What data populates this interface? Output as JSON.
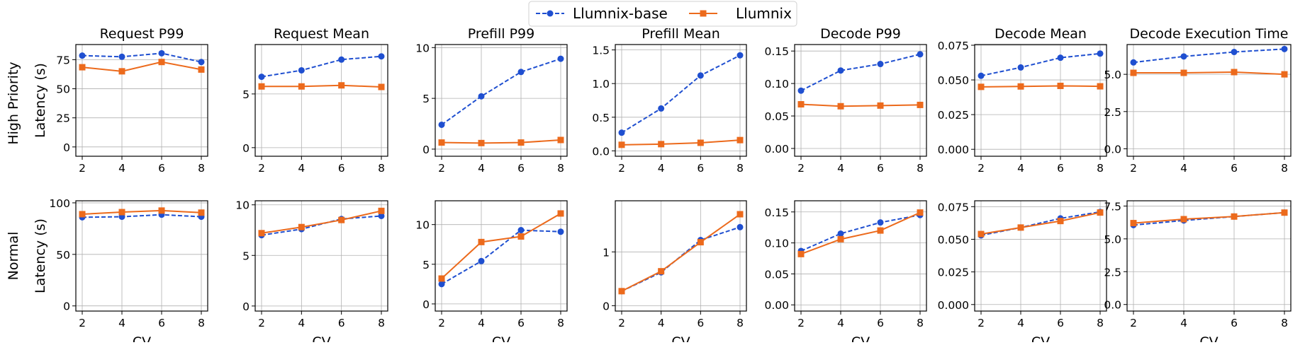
{
  "legend": {
    "position": "top-center",
    "entries": [
      {
        "label": "Llumnix-base",
        "color": "#1f4fd0",
        "marker": "circle",
        "linestyle": "dashed"
      },
      {
        "label": "Llumnix",
        "color": "#ec6a1c",
        "marker": "square",
        "linestyle": "solid"
      }
    ]
  },
  "rows": [
    {
      "label": "High Priority",
      "ylabel": "Latency (s)"
    },
    {
      "label": "Normal",
      "ylabel": "Latency (s)"
    }
  ],
  "xlabel": "CV",
  "chart_data": [
    {
      "type": "line",
      "title": "Request P99",
      "row": 0,
      "col": 0,
      "xlabel": "",
      "ylabel": "Latency (s)",
      "x": [
        2,
        4,
        6,
        8
      ],
      "ylim": [
        -8,
        88
      ],
      "yticks": [
        0,
        25,
        50,
        75
      ],
      "ytick_labels": [
        "0",
        "25",
        "50",
        "75"
      ],
      "grid": true,
      "series": [
        {
          "name": "Llumnix-base",
          "values": [
            78.5,
            77.5,
            80.5,
            73.0
          ]
        },
        {
          "name": "Llumnix",
          "values": [
            68.5,
            65.0,
            73.0,
            66.5
          ]
        }
      ]
    },
    {
      "type": "line",
      "title": "Request Mean",
      "row": 0,
      "col": 1,
      "xlabel": "",
      "ylabel": "",
      "x": [
        2,
        4,
        6,
        8
      ],
      "ylim": [
        -0.8,
        9.6
      ],
      "yticks": [
        0,
        5
      ],
      "ytick_labels": [
        "0",
        "5"
      ],
      "grid": true,
      "series": [
        {
          "name": "Llumnix-base",
          "values": [
            6.6,
            7.2,
            8.2,
            8.5
          ]
        },
        {
          "name": "Llumnix",
          "values": [
            5.7,
            5.7,
            5.8,
            5.65
          ]
        }
      ]
    },
    {
      "type": "line",
      "title": "Prefill P99",
      "row": 0,
      "col": 2,
      "xlabel": "",
      "ylabel": "",
      "x": [
        2,
        4,
        6,
        8
      ],
      "ylim": [
        -0.7,
        10.3
      ],
      "yticks": [
        0,
        5,
        10
      ],
      "ytick_labels": [
        "0",
        "5",
        "10"
      ],
      "grid": true,
      "series": [
        {
          "name": "Llumnix-base",
          "values": [
            2.4,
            5.2,
            7.6,
            8.9
          ]
        },
        {
          "name": "Llumnix",
          "values": [
            0.65,
            0.6,
            0.65,
            0.9
          ]
        }
      ]
    },
    {
      "type": "line",
      "title": "Prefill Mean",
      "row": 0,
      "col": 3,
      "xlabel": "",
      "ylabel": "",
      "x": [
        2,
        4,
        6,
        8
      ],
      "ylim": [
        -0.08,
        1.58
      ],
      "yticks": [
        0.0,
        0.5,
        1.0,
        1.5
      ],
      "ytick_labels": [
        "0.0",
        "0.5",
        "1.0",
        "1.5"
      ],
      "grid": true,
      "series": [
        {
          "name": "Llumnix-base",
          "values": [
            0.27,
            0.63,
            1.12,
            1.42
          ]
        },
        {
          "name": "Llumnix",
          "values": [
            0.09,
            0.1,
            0.12,
            0.16
          ]
        }
      ]
    },
    {
      "type": "line",
      "title": "Decode P99",
      "row": 0,
      "col": 4,
      "xlabel": "",
      "ylabel": "",
      "x": [
        2,
        4,
        6,
        8
      ],
      "ylim": [
        -0.012,
        0.16
      ],
      "yticks": [
        0.0,
        0.05,
        0.1,
        0.15
      ],
      "ytick_labels": [
        "0.00",
        "0.05",
        "0.10",
        "0.15"
      ],
      "grid": true,
      "series": [
        {
          "name": "Llumnix-base",
          "values": [
            0.089,
            0.12,
            0.13,
            0.145
          ]
        },
        {
          "name": "Llumnix",
          "values": [
            0.068,
            0.065,
            0.066,
            0.067
          ]
        }
      ]
    },
    {
      "type": "line",
      "title": "Decode Mean",
      "row": 0,
      "col": 5,
      "xlabel": "",
      "ylabel": "",
      "x": [
        2,
        4,
        6,
        8
      ],
      "ylim": [
        -0.005,
        0.0755
      ],
      "yticks": [
        0.0,
        0.025,
        0.05,
        0.075
      ],
      "ytick_labels": [
        "0.000",
        "0.025",
        "0.050",
        "0.075"
      ],
      "grid": true,
      "series": [
        {
          "name": "Llumnix-base",
          "values": [
            0.053,
            0.059,
            0.066,
            0.069
          ]
        },
        {
          "name": "Llumnix",
          "values": [
            0.045,
            0.0453,
            0.0457,
            0.0454
          ]
        }
      ]
    },
    {
      "type": "line",
      "title": "Decode Execution Time",
      "row": 0,
      "col": 6,
      "xlabel": "",
      "ylabel": "",
      "x": [
        2,
        4,
        6,
        8
      ],
      "ylim": [
        -0.5,
        7.0
      ],
      "yticks": [
        0.0,
        2.5,
        5.0
      ],
      "ytick_labels": [
        "0.0",
        "2.5",
        "5.0"
      ],
      "grid": true,
      "series": [
        {
          "name": "Llumnix-base",
          "values": [
            5.8,
            6.2,
            6.5,
            6.7
          ]
        },
        {
          "name": "Llumnix",
          "values": [
            5.1,
            5.1,
            5.15,
            5.0
          ]
        }
      ]
    },
    {
      "type": "line",
      "title": "",
      "row": 1,
      "col": 0,
      "xlabel": "CV",
      "ylabel": "Latency (s)",
      "x": [
        2,
        4,
        6,
        8
      ],
      "ylim": [
        -5,
        102
      ],
      "yticks": [
        0,
        50,
        100
      ],
      "ytick_labels": [
        "0",
        "50",
        "100"
      ],
      "grid": true,
      "series": [
        {
          "name": "Llumnix-base",
          "values": [
            86,
            86.5,
            88.5,
            86.5
          ]
        },
        {
          "name": "Llumnix",
          "values": [
            89,
            91,
            92.5,
            90.5
          ]
        }
      ]
    },
    {
      "type": "line",
      "title": "",
      "row": 1,
      "col": 1,
      "xlabel": "CV",
      "ylabel": "",
      "x": [
        2,
        4,
        6,
        8
      ],
      "ylim": [
        -0.5,
        10.4
      ],
      "yticks": [
        0,
        5,
        10
      ],
      "ytick_labels": [
        "0",
        "5",
        "10"
      ],
      "grid": true,
      "series": [
        {
          "name": "Llumnix-base",
          "values": [
            7.0,
            7.6,
            8.6,
            8.9
          ]
        },
        {
          "name": "Llumnix",
          "values": [
            7.2,
            7.8,
            8.5,
            9.4
          ]
        }
      ]
    },
    {
      "type": "line",
      "title": "",
      "row": 1,
      "col": 2,
      "xlabel": "CV",
      "ylabel": "",
      "x": [
        2,
        4,
        6,
        8
      ],
      "ylim": [
        -0.9,
        13.0
      ],
      "yticks": [
        0,
        5,
        10
      ],
      "ytick_labels": [
        "0",
        "5",
        "10"
      ],
      "grid": true,
      "series": [
        {
          "name": "Llumnix-base",
          "values": [
            2.5,
            5.4,
            9.3,
            9.1
          ]
        },
        {
          "name": "Llumnix",
          "values": [
            3.2,
            7.8,
            8.5,
            11.4
          ]
        }
      ]
    },
    {
      "type": "line",
      "title": "",
      "row": 1,
      "col": 3,
      "xlabel": "CV",
      "ylabel": "",
      "x": [
        2,
        4,
        6,
        8
      ],
      "ylim": [
        -0.1,
        1.95
      ],
      "yticks": [
        0,
        1
      ],
      "ytick_labels": [
        "0",
        "1"
      ],
      "grid": true,
      "series": [
        {
          "name": "Llumnix-base",
          "values": [
            0.27,
            0.62,
            1.22,
            1.46
          ]
        },
        {
          "name": "Llumnix",
          "values": [
            0.27,
            0.64,
            1.18,
            1.7
          ]
        }
      ]
    },
    {
      "type": "line",
      "title": "",
      "row": 1,
      "col": 4,
      "xlabel": "CV",
      "ylabel": "",
      "x": [
        2,
        4,
        6,
        8
      ],
      "ylim": [
        -0.01,
        0.168
      ],
      "yticks": [
        0.0,
        0.05,
        0.1,
        0.15
      ],
      "ytick_labels": [
        "0.00",
        "0.05",
        "0.10",
        "0.15"
      ],
      "grid": true,
      "series": [
        {
          "name": "Llumnix-base",
          "values": [
            0.087,
            0.115,
            0.133,
            0.145
          ]
        },
        {
          "name": "Llumnix",
          "values": [
            0.082,
            0.106,
            0.12,
            0.149
          ]
        }
      ]
    },
    {
      "type": "line",
      "title": "",
      "row": 1,
      "col": 5,
      "xlabel": "CV",
      "ylabel": "",
      "x": [
        2,
        4,
        6,
        8
      ],
      "ylim": [
        -0.005,
        0.0795
      ],
      "yticks": [
        0.0,
        0.025,
        0.05,
        0.075
      ],
      "ytick_labels": [
        "0.000",
        "0.025",
        "0.050",
        "0.075"
      ],
      "grid": true,
      "series": [
        {
          "name": "Llumnix-base",
          "values": [
            0.053,
            0.059,
            0.066,
            0.071
          ]
        },
        {
          "name": "Llumnix",
          "values": [
            0.054,
            0.059,
            0.064,
            0.0705
          ]
        }
      ]
    },
    {
      "type": "line",
      "title": "",
      "row": 1,
      "col": 6,
      "xlabel": "CV",
      "ylabel": "",
      "x": [
        2,
        4,
        6,
        8
      ],
      "ylim": [
        -0.5,
        7.9
      ],
      "yticks": [
        0.0,
        2.5,
        5.0,
        7.5
      ],
      "ytick_labels": [
        "0.0",
        "2.5",
        "5.0",
        "7.5"
      ],
      "grid": true,
      "series": [
        {
          "name": "Llumnix-base",
          "values": [
            6.05,
            6.4,
            6.7,
            7.0
          ]
        },
        {
          "name": "Llumnix",
          "values": [
            6.2,
            6.5,
            6.7,
            7.0
          ]
        }
      ]
    }
  ]
}
